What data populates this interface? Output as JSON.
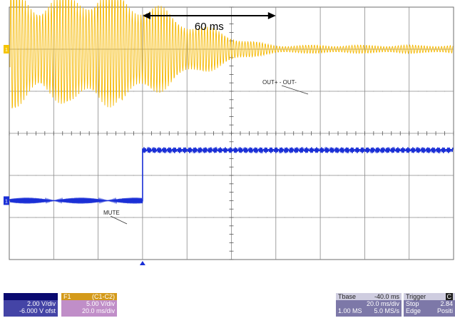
{
  "chart_data": {
    "type": "line",
    "xlabel": "",
    "ylabel": "",
    "grid": true,
    "x_divisions": 10,
    "y_divisions": 6,
    "measurement": {
      "label": "60 ms",
      "x_start_div": 3,
      "x_end_div": 6
    },
    "series": [
      {
        "name": "OUT+ - OUT-",
        "channel": "F1",
        "color": "#f5b800",
        "style": "decaying-sine",
        "center_div": 1.0,
        "amplitude_div": 1.5,
        "decay_start_div": 2.5,
        "settle_div": 6.0,
        "settled_amplitude_div": 0.1
      },
      {
        "name": "MUTE",
        "channel": "C1",
        "color": "#1a2fd6",
        "style": "step",
        "low_level_div": 4.6,
        "high_level_div": 3.4,
        "step_at_div": 3.0
      }
    ],
    "annotations": [
      {
        "text": "OUT+ - OUT-",
        "series": 0
      },
      {
        "text": "MUTE",
        "series": 1
      }
    ],
    "side_markers": {
      "top": "1",
      "bottom": "1"
    }
  },
  "channels": {
    "c1": {
      "header": "",
      "scale": "2.00 V/div",
      "offset": "-6.000 V ofst"
    },
    "f1": {
      "name": "F1",
      "function": "(C1-C2)",
      "scale": "5.00 V/div",
      "timebase": "20.0 ms/div"
    }
  },
  "timebase": {
    "label": "Tbase",
    "delay": "-40.0 ms",
    "scale": "20.0 ms/div",
    "samples": "1.00 MS",
    "rate": "5.0 MS/s"
  },
  "trigger": {
    "label": "Trigger",
    "channel": "C",
    "mode": "Stop",
    "level": "2.84",
    "type": "Edge",
    "slope": "Positi"
  }
}
